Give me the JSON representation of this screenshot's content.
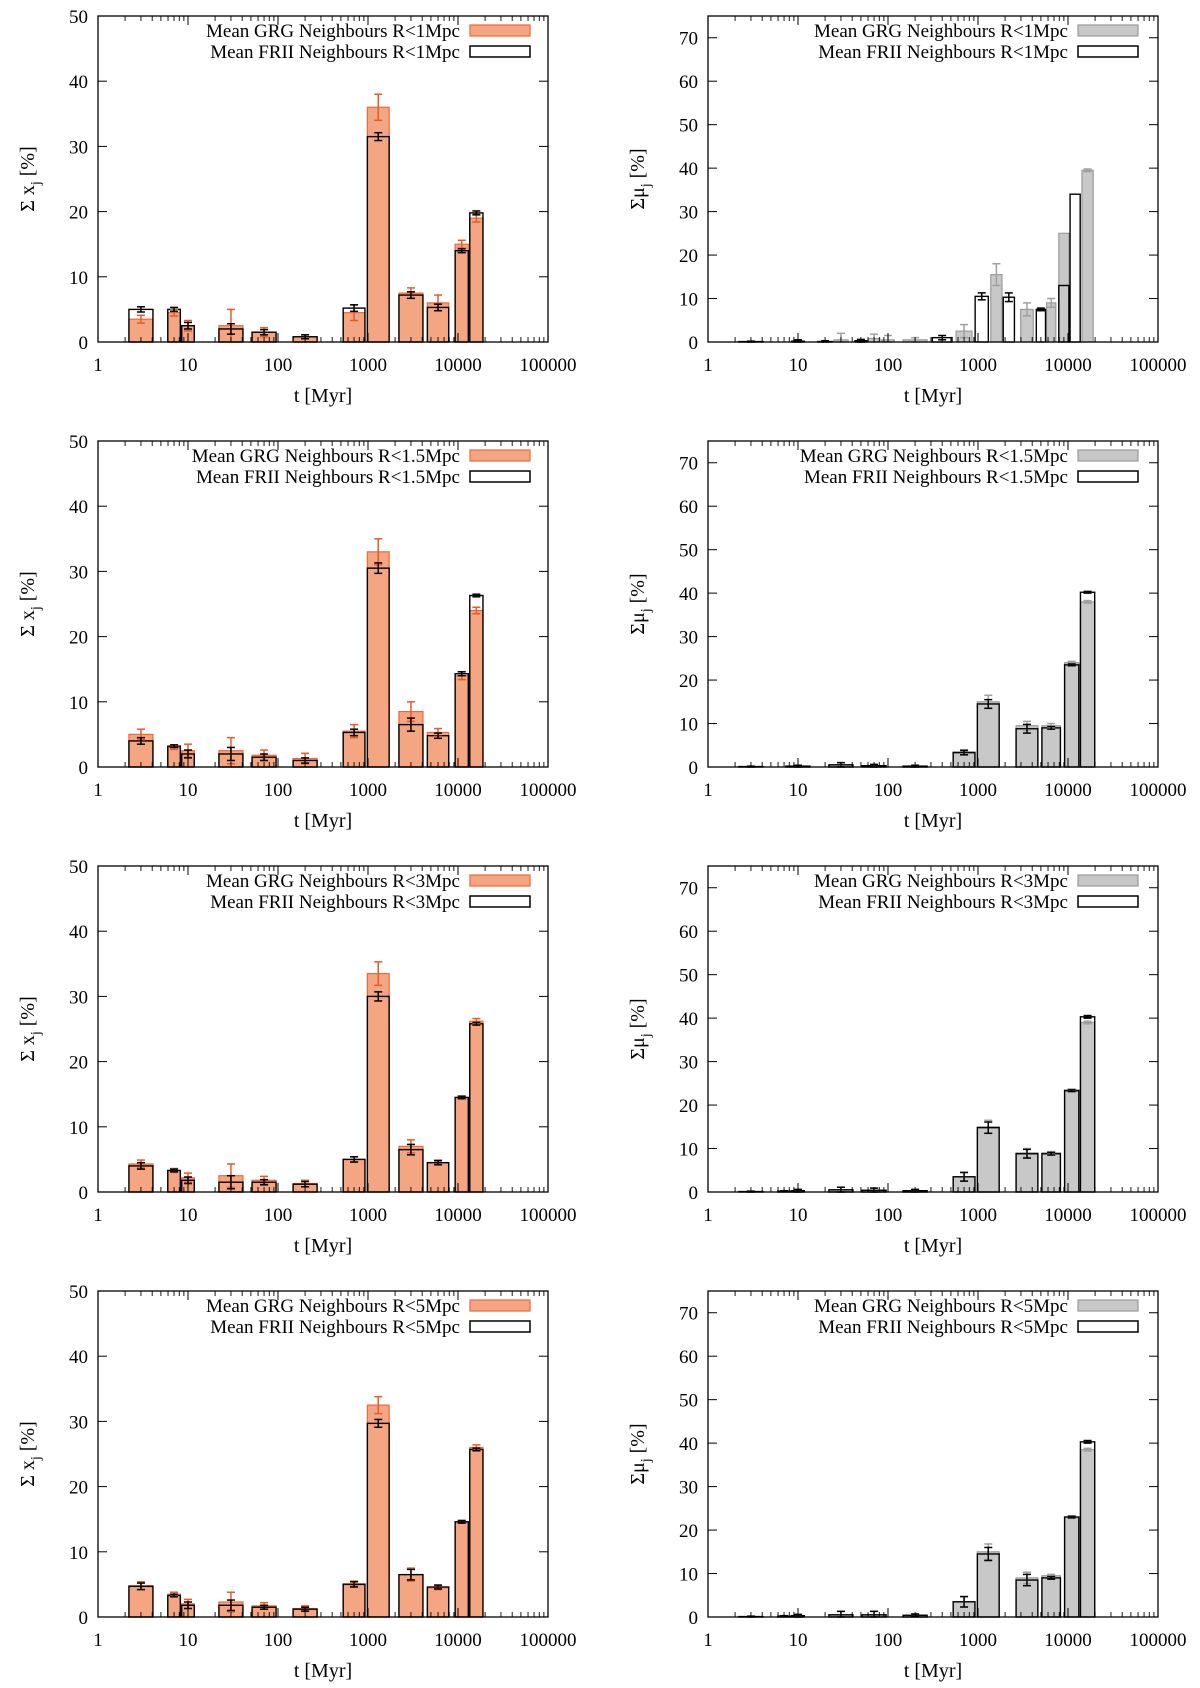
{
  "chart_data": [
    {
      "panel": "left-1",
      "type": "bar",
      "xscale": "log",
      "title": "",
      "xlabel": "t [Myr]",
      "ylabel": "Σ xⱼ [%]",
      "ylabel_main": "Σ x",
      "ylabel_sub": "j",
      "ylabel_tail": " [%]",
      "xlim": [
        1,
        100000
      ],
      "ylim": [
        0,
        50
      ],
      "xticks": [
        1,
        10,
        100,
        1000,
        10000,
        100000
      ],
      "xtick_labels": [
        "1",
        "10",
        "100",
        "1000",
        "10000",
        "100000"
      ],
      "yticks": [
        0,
        10,
        20,
        30,
        40,
        50
      ],
      "ytick_labels": [
        "0",
        "10",
        "20",
        "30",
        "40",
        "50"
      ],
      "x": [
        3,
        7,
        10,
        30,
        70,
        200,
        700,
        1300,
        3000,
        6000,
        11000,
        16000
      ],
      "series": [
        {
          "name": "Mean GRG Neighbours R<1Mpc",
          "style": "filled",
          "color": "#f4a582",
          "edge": "#f06838",
          "errcolor": "#e85a28",
          "values": [
            3.5,
            4.5,
            2.5,
            2.5,
            1.5,
            0.8,
            4.5,
            36.0,
            7.5,
            6.0,
            15.0,
            19.0
          ],
          "errors": [
            0.6,
            0.5,
            0.8,
            2.5,
            0.7,
            0.3,
            1.2,
            2.0,
            0.8,
            1.2,
            0.6,
            0.6
          ]
        },
        {
          "name": "Mean FRII Neighbours R<1Mpc",
          "style": "open",
          "color": "#ffffff",
          "edge": "#000000",
          "errcolor": "#000000",
          "values": [
            5.0,
            5.0,
            2.5,
            2.0,
            1.5,
            0.8,
            5.2,
            31.5,
            7.2,
            5.3,
            14.0,
            19.8
          ],
          "errors": [
            0.4,
            0.3,
            0.5,
            0.8,
            0.4,
            0.3,
            0.5,
            0.6,
            0.5,
            0.5,
            0.3,
            0.3
          ]
        }
      ]
    },
    {
      "panel": "right-1",
      "type": "bar",
      "xscale": "log",
      "title": "",
      "xlabel": "t [Myr]",
      "ylabel": "Σμⱼ [%]",
      "ylabel_main": "Σμ",
      "ylabel_sub": "j",
      "ylabel_tail": " [%]",
      "xlim": [
        1,
        100000
      ],
      "ylim": [
        0,
        75
      ],
      "xticks": [
        1,
        10,
        100,
        1000,
        10000,
        100000
      ],
      "xtick_labels": [
        "1",
        "10",
        "100",
        "1000",
        "10000",
        "100000"
      ],
      "yticks": [
        0,
        10,
        20,
        30,
        40,
        50,
        60,
        70
      ],
      "ytick_labels": [
        "0",
        "10",
        "20",
        "30",
        "40",
        "50",
        "60",
        "70"
      ],
      "x": [
        3,
        7,
        10,
        20,
        30,
        50,
        70,
        100,
        200,
        400,
        700,
        1100,
        1600,
        2200,
        3500,
        5000,
        6500,
        9000,
        12000,
        16500
      ],
      "series": [
        {
          "name": "Mean GRG Neighbours R<1Mpc",
          "style": "filled",
          "color": "#c8c8c8",
          "edge": "#9a9a9a",
          "errcolor": "#a0a0a0",
          "values": [
            0,
            0,
            0.2,
            0,
            0.5,
            0,
            0.8,
            0.5,
            0.5,
            0,
            2.5,
            0,
            15.5,
            0,
            7.5,
            0,
            9.0,
            25.0,
            0,
            39.5
          ],
          "errors": [
            0,
            0,
            0.3,
            0,
            1.5,
            0,
            1.0,
            1.0,
            0.5,
            0,
            1.5,
            0,
            2.5,
            0,
            1.5,
            0,
            1.0,
            0,
            0,
            0.3
          ]
        },
        {
          "name": "Mean FRII Neighbours R<1Mpc",
          "style": "open",
          "color": "#ffffff",
          "edge": "#000000",
          "errcolor": "#000000",
          "values": [
            0.1,
            0,
            0.2,
            0.1,
            0,
            0.3,
            0,
            0,
            0,
            1.0,
            0,
            10.5,
            0,
            10.3,
            0,
            7.5,
            0,
            13.0,
            34.0,
            0
          ],
          "errors": [
            0.1,
            0,
            0.3,
            0.2,
            0,
            0.3,
            0,
            0,
            0,
            0.5,
            0,
            0.8,
            0,
            1.0,
            0,
            0.3,
            0,
            0,
            0,
            0
          ]
        }
      ]
    },
    {
      "panel": "left-2",
      "type": "bar",
      "xscale": "log",
      "title": "",
      "xlabel": "t [Myr]",
      "ylabel": "Σ xⱼ [%]",
      "ylabel_main": "Σ x",
      "ylabel_sub": "j",
      "ylabel_tail": " [%]",
      "xlim": [
        1,
        100000
      ],
      "ylim": [
        0,
        50
      ],
      "xticks": [
        1,
        10,
        100,
        1000,
        10000,
        100000
      ],
      "xtick_labels": [
        "1",
        "10",
        "100",
        "1000",
        "10000",
        "100000"
      ],
      "yticks": [
        0,
        10,
        20,
        30,
        40,
        50
      ],
      "ytick_labels": [
        "0",
        "10",
        "20",
        "30",
        "40",
        "50"
      ],
      "x": [
        3,
        7,
        10,
        30,
        70,
        200,
        700,
        1300,
        3000,
        6000,
        11000,
        16000
      ],
      "series": [
        {
          "name": "Mean GRG Neighbours R<1.5Mpc",
          "style": "filled",
          "color": "#f4a582",
          "edge": "#f06838",
          "errcolor": "#e85a28",
          "values": [
            5.0,
            3.0,
            2.5,
            2.5,
            1.8,
            1.3,
            5.5,
            33.0,
            8.5,
            5.3,
            14.0,
            24.0
          ],
          "errors": [
            0.8,
            0.3,
            1.0,
            2.0,
            0.8,
            0.8,
            1.0,
            2.0,
            1.5,
            0.6,
            0.6,
            0.5
          ]
        },
        {
          "name": "Mean FRII Neighbours R<1.5Mpc",
          "style": "open",
          "color": "#ffffff",
          "edge": "#000000",
          "errcolor": "#000000",
          "values": [
            4.0,
            3.2,
            2.0,
            2.0,
            1.5,
            1.0,
            5.3,
            30.5,
            6.5,
            4.8,
            14.3,
            26.3
          ],
          "errors": [
            0.5,
            0.2,
            0.6,
            1.0,
            0.5,
            0.4,
            0.5,
            0.8,
            1.0,
            0.4,
            0.3,
            0.2
          ]
        }
      ]
    },
    {
      "panel": "right-2",
      "type": "bar",
      "xscale": "log",
      "title": "",
      "xlabel": "t [Myr]",
      "ylabel": "Σμⱼ [%]",
      "ylabel_main": "Σμ",
      "ylabel_sub": "j",
      "ylabel_tail": " [%]",
      "xlim": [
        1,
        100000
      ],
      "ylim": [
        0,
        75
      ],
      "xticks": [
        1,
        10,
        100,
        1000,
        10000,
        100000
      ],
      "xtick_labels": [
        "1",
        "10",
        "100",
        "1000",
        "10000",
        "100000"
      ],
      "yticks": [
        0,
        10,
        20,
        30,
        40,
        50,
        60,
        70
      ],
      "ytick_labels": [
        "0",
        "10",
        "20",
        "30",
        "40",
        "50",
        "60",
        "70"
      ],
      "x": [
        3,
        10,
        30,
        70,
        200,
        700,
        1300,
        3500,
        6500,
        11000,
        16500
      ],
      "series": [
        {
          "name": "Mean GRG Neighbours R<1.5Mpc",
          "style": "filled",
          "color": "#c8c8c8",
          "edge": "#9a9a9a",
          "errcolor": "#a0a0a0",
          "values": [
            0,
            0.2,
            0.5,
            0.3,
            0.2,
            3.5,
            15.0,
            9.5,
            9.5,
            24.0,
            38.0
          ],
          "errors": [
            0,
            0.2,
            0.5,
            0.3,
            0.2,
            0.5,
            1.5,
            1.0,
            0.5,
            0.3,
            0.3
          ]
        },
        {
          "name": "Mean FRII Neighbours R<1.5Mpc",
          "style": "open",
          "color": "#ffffff",
          "edge": "#000000",
          "errcolor": "#000000",
          "values": [
            0.1,
            0.2,
            0.5,
            0.3,
            0.2,
            3.3,
            14.5,
            8.8,
            9.0,
            23.5,
            40.2
          ],
          "errors": [
            0.1,
            0.2,
            0.5,
            0.3,
            0.2,
            0.5,
            1.0,
            1.0,
            0.3,
            0.2,
            0.2
          ]
        }
      ]
    },
    {
      "panel": "left-3",
      "type": "bar",
      "xscale": "log",
      "title": "",
      "xlabel": "t [Myr]",
      "ylabel": "Σ xⱼ [%]",
      "ylabel_main": "Σ x",
      "ylabel_sub": "j",
      "ylabel_tail": " [%]",
      "xlim": [
        1,
        100000
      ],
      "ylim": [
        0,
        50
      ],
      "xticks": [
        1,
        10,
        100,
        1000,
        10000,
        100000
      ],
      "xtick_labels": [
        "1",
        "10",
        "100",
        "1000",
        "10000",
        "100000"
      ],
      "yticks": [
        0,
        10,
        20,
        30,
        40,
        50
      ],
      "ytick_labels": [
        "0",
        "10",
        "20",
        "30",
        "40",
        "50"
      ],
      "x": [
        3,
        7,
        10,
        30,
        70,
        200,
        700,
        1300,
        3000,
        6000,
        11000,
        16000
      ],
      "series": [
        {
          "name": "Mean GRG Neighbours R<3Mpc",
          "style": "filled",
          "color": "#f4a582",
          "edge": "#f06838",
          "errcolor": "#e85a28",
          "values": [
            4.3,
            3.3,
            2.2,
            2.5,
            1.8,
            1.3,
            5.0,
            33.5,
            7.0,
            4.5,
            14.5,
            26.2
          ],
          "errors": [
            0.6,
            0.3,
            0.7,
            1.8,
            0.6,
            0.5,
            0.4,
            1.8,
            1.0,
            0.4,
            0.2,
            0.4
          ]
        },
        {
          "name": "Mean FRII Neighbours R<3Mpc",
          "style": "open",
          "color": "#ffffff",
          "edge": "#000000",
          "errcolor": "#000000",
          "values": [
            4.0,
            3.3,
            1.8,
            1.5,
            1.5,
            1.2,
            5.0,
            30.0,
            6.5,
            4.5,
            14.5,
            25.8
          ],
          "errors": [
            0.5,
            0.2,
            0.5,
            1.0,
            0.4,
            0.4,
            0.4,
            0.7,
            0.8,
            0.3,
            0.2,
            0.2
          ]
        }
      ]
    },
    {
      "panel": "right-3",
      "type": "bar",
      "xscale": "log",
      "title": "",
      "xlabel": "t [Myr]",
      "ylabel": "Σμⱼ [%]",
      "ylabel_main": "Σμ",
      "ylabel_sub": "j",
      "ylabel_tail": " [%]",
      "xlim": [
        1,
        100000
      ],
      "ylim": [
        0,
        75
      ],
      "xticks": [
        1,
        10,
        100,
        1000,
        10000,
        100000
      ],
      "xtick_labels": [
        "1",
        "10",
        "100",
        "1000",
        "10000",
        "100000"
      ],
      "yticks": [
        0,
        10,
        20,
        30,
        40,
        50,
        60,
        70
      ],
      "ytick_labels": [
        "0",
        "10",
        "20",
        "30",
        "40",
        "50",
        "60",
        "70"
      ],
      "x": [
        3,
        7,
        10,
        30,
        70,
        200,
        700,
        1300,
        3500,
        6500,
        11000,
        16500
      ],
      "series": [
        {
          "name": "Mean GRG Neighbours R<3Mpc",
          "style": "filled",
          "color": "#c8c8c8",
          "edge": "#9a9a9a",
          "errcolor": "#a0a0a0",
          "values": [
            0,
            0.2,
            0.3,
            0.5,
            0.4,
            0.3,
            3.5,
            15.0,
            9.0,
            9.0,
            23.5,
            39.0
          ],
          "errors": [
            0,
            0.1,
            0.3,
            0.6,
            0.5,
            0.3,
            1.0,
            1.5,
            1.0,
            0.3,
            0.2,
            0.3
          ]
        },
        {
          "name": "Mean FRII Neighbours R<3Mpc",
          "style": "open",
          "color": "#ffffff",
          "edge": "#000000",
          "errcolor": "#000000",
          "values": [
            0.1,
            0.2,
            0.3,
            0.5,
            0.4,
            0.3,
            3.5,
            14.8,
            8.8,
            8.8,
            23.3,
            40.3
          ],
          "errors": [
            0.1,
            0.1,
            0.3,
            0.6,
            0.5,
            0.3,
            1.0,
            1.3,
            1.0,
            0.3,
            0.2,
            0.3
          ]
        }
      ]
    },
    {
      "panel": "left-4",
      "type": "bar",
      "xscale": "log",
      "title": "",
      "xlabel": "t [Myr]",
      "ylabel": "Σ xⱼ [%]",
      "ylabel_main": "Σ x",
      "ylabel_sub": "j",
      "ylabel_tail": " [%]",
      "xlim": [
        1,
        100000
      ],
      "ylim": [
        0,
        50
      ],
      "xticks": [
        1,
        10,
        100,
        1000,
        10000,
        100000
      ],
      "xtick_labels": [
        "1",
        "10",
        "100",
        "1000",
        "10000",
        "100000"
      ],
      "yticks": [
        0,
        10,
        20,
        30,
        40,
        50
      ],
      "ytick_labels": [
        "0",
        "10",
        "20",
        "30",
        "40",
        "50"
      ],
      "x": [
        3,
        7,
        10,
        30,
        70,
        200,
        700,
        1300,
        3000,
        6000,
        11000,
        16000
      ],
      "series": [
        {
          "name": "Mean GRG Neighbours R<5Mpc",
          "style": "filled",
          "color": "#f4a582",
          "edge": "#f06838",
          "errcolor": "#e85a28",
          "values": [
            4.8,
            3.5,
            2.0,
            2.3,
            1.7,
            1.3,
            5.1,
            32.5,
            6.5,
            4.5,
            14.6,
            26.0
          ],
          "errors": [
            0.6,
            0.3,
            0.7,
            1.5,
            0.5,
            0.4,
            0.4,
            1.3,
            1.0,
            0.3,
            0.2,
            0.4
          ]
        },
        {
          "name": "Mean FRII Neighbours R<5Mpc",
          "style": "open",
          "color": "#ffffff",
          "edge": "#000000",
          "errcolor": "#000000",
          "values": [
            4.7,
            3.3,
            1.8,
            1.8,
            1.5,
            1.2,
            5.0,
            29.7,
            6.5,
            4.6,
            14.6,
            25.7
          ],
          "errors": [
            0.5,
            0.2,
            0.5,
            0.8,
            0.3,
            0.3,
            0.4,
            0.6,
            0.8,
            0.3,
            0.2,
            0.2
          ]
        }
      ]
    },
    {
      "panel": "right-4",
      "type": "bar",
      "xscale": "log",
      "title": "",
      "xlabel": "t [Myr]",
      "ylabel": "Σμⱼ [%]",
      "ylabel_main": "Σμ",
      "ylabel_sub": "j",
      "ylabel_tail": " [%]",
      "xlim": [
        1,
        100000
      ],
      "ylim": [
        0,
        75
      ],
      "xticks": [
        1,
        10,
        100,
        1000,
        10000,
        100000
      ],
      "xtick_labels": [
        "1",
        "10",
        "100",
        "1000",
        "10000",
        "100000"
      ],
      "yticks": [
        0,
        10,
        20,
        30,
        40,
        50,
        60,
        70
      ],
      "ytick_labels": [
        "0",
        "10",
        "20",
        "30",
        "40",
        "50",
        "60",
        "70"
      ],
      "x": [
        3,
        7,
        10,
        30,
        70,
        200,
        700,
        1300,
        3500,
        6500,
        11000,
        16500
      ],
      "series": [
        {
          "name": "Mean GRG Neighbours R<5Mpc",
          "style": "filled",
          "color": "#c8c8c8",
          "edge": "#9a9a9a",
          "errcolor": "#a0a0a0",
          "values": [
            0,
            0.2,
            0.3,
            0.5,
            0.5,
            0.4,
            3.5,
            15.0,
            9.0,
            9.5,
            23.0,
            38.5
          ],
          "errors": [
            0,
            0.1,
            0.3,
            0.8,
            0.8,
            0.3,
            1.2,
            1.8,
            1.3,
            0.3,
            0.2,
            0.3
          ]
        },
        {
          "name": "Mean FRII Neighbours R<5Mpc",
          "style": "open",
          "color": "#ffffff",
          "edge": "#000000",
          "errcolor": "#000000",
          "values": [
            0.1,
            0.2,
            0.3,
            0.5,
            0.5,
            0.4,
            3.5,
            14.5,
            8.5,
            9.0,
            23.0,
            40.3
          ],
          "errors": [
            0.1,
            0.1,
            0.3,
            0.8,
            0.8,
            0.3,
            1.2,
            1.5,
            1.3,
            0.3,
            0.2,
            0.3
          ]
        }
      ]
    }
  ]
}
